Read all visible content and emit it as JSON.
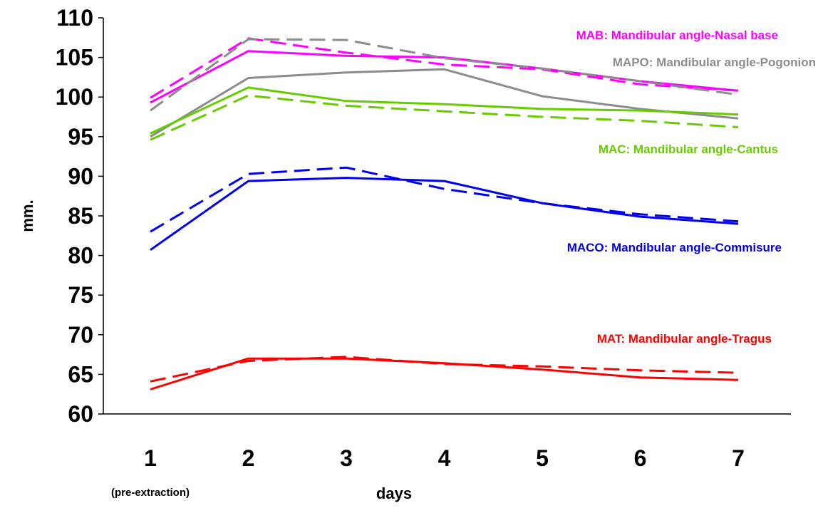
{
  "chart_data": {
    "type": "line",
    "xlabel": "days",
    "ylabel": "mm.",
    "x": [
      1,
      2,
      3,
      4,
      5,
      6,
      7
    ],
    "x_tick_labels": [
      "1",
      "2",
      "3",
      "4",
      "5",
      "6",
      "7"
    ],
    "x_sublabel": "(pre-extraction)",
    "ylim": [
      60,
      110
    ],
    "y_ticks": [
      60,
      65,
      70,
      75,
      80,
      85,
      90,
      95,
      100,
      105,
      110
    ],
    "grid": false,
    "series": [
      {
        "name": "MAB: Mandibular angle-Nasal base",
        "color": "#ff00ff",
        "values": [
          99.3,
          105.8,
          105.2,
          105.0,
          103.6,
          102.0,
          100.8
        ],
        "dashed": [
          99.9,
          107.4,
          105.6,
          104.1,
          103.5,
          101.6,
          100.8
        ]
      },
      {
        "name": "MAPO: Mandibular angle-Pogonion",
        "color": "#8c8c8c",
        "values": [
          95.0,
          102.4,
          103.1,
          103.5,
          100.1,
          98.5,
          97.3
        ],
        "dashed": [
          98.3,
          107.3,
          107.2,
          104.9,
          103.6,
          102.0,
          100.3
        ]
      },
      {
        "name": "MAC: Mandibular angle-Cantus",
        "color": "#66cc00",
        "values": [
          95.4,
          101.2,
          99.5,
          99.1,
          98.5,
          98.3,
          97.8
        ],
        "dashed": [
          94.6,
          100.2,
          98.9,
          98.2,
          97.5,
          97.0,
          96.2
        ]
      },
      {
        "name": "MACO: Mandibular angle-Commisure",
        "color": "#0000ee",
        "values": [
          80.7,
          89.4,
          89.8,
          89.4,
          86.6,
          84.9,
          84.0
        ],
        "dashed": [
          83.0,
          90.3,
          91.1,
          88.4,
          86.6,
          85.2,
          84.3
        ]
      },
      {
        "name": "MAT: Mandibular angle-Tragus",
        "color": "#ff0000",
        "values": [
          63.1,
          67.0,
          67.0,
          66.4,
          65.6,
          64.6,
          64.3
        ],
        "dashed": [
          64.1,
          66.7,
          67.2,
          66.3,
          66.0,
          65.5,
          65.2
        ]
      }
    ]
  }
}
